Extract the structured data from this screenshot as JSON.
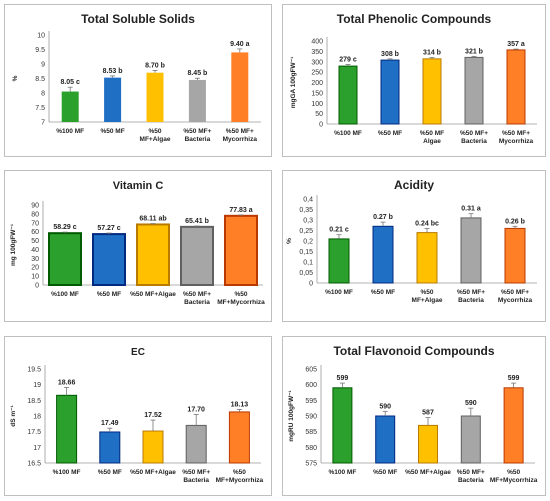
{
  "chart_data": [
    {
      "type": "bar",
      "title": "Total Soluble Solids",
      "ylabel": "%",
      "ylim": [
        7,
        10
      ],
      "yticks": [
        7,
        7.5,
        8,
        8.5,
        9,
        9.5,
        10
      ],
      "categories": [
        [
          "%100 MF"
        ],
        [
          "%50 MF"
        ],
        [
          "%50",
          "MF+Algae"
        ],
        [
          "%50 MF+",
          "Bacteria"
        ],
        [
          "%50 MF+",
          "Mycorrhiza"
        ]
      ],
      "values": [
        8.05,
        8.53,
        8.7,
        8.45,
        9.4
      ],
      "errors": [
        0.15,
        0.06,
        0.08,
        0.06,
        0.12
      ],
      "labels": [
        "8.05 c",
        "8.53 b",
        "8.70 b",
        "8.45 b",
        "9.40 a"
      ],
      "colors": [
        "#2ca02c",
        "#1f6fc5",
        "#ffc000",
        "#a6a6a6",
        "#ff7f27"
      ],
      "grid": false
    },
    {
      "type": "bar",
      "title": "Total Phenolic Compounds",
      "ylabel": "mgGA 100gFW⁻¹",
      "ylim": [
        0,
        400
      ],
      "yticks": [
        0,
        50,
        100,
        150,
        200,
        250,
        300,
        350,
        400
      ],
      "categories": [
        [
          "%100 MF"
        ],
        [
          "%50 MF"
        ],
        [
          "%50 MF",
          "Algae"
        ],
        [
          "%50 MF+",
          "Bacteria"
        ],
        [
          "%50 MF+",
          "Mycorrhiza"
        ]
      ],
      "values": [
        279,
        308,
        314,
        321,
        357
      ],
      "errors": [
        8,
        6,
        6,
        5,
        4
      ],
      "labels": [
        "279 c",
        "308 b",
        "314 b",
        "321 b",
        "357 a"
      ],
      "colors": [
        "#2ca02c",
        "#1f6fc5",
        "#ffc000",
        "#a6a6a6",
        "#ff7f27"
      ],
      "grid": false
    },
    {
      "type": "bar",
      "title": "Vitamin C",
      "ylabel": "mg 100gFW⁻¹",
      "ylim": [
        0,
        90
      ],
      "yticks": [
        0,
        10,
        20,
        30,
        40,
        50,
        60,
        70,
        80,
        90
      ],
      "categories": [
        [
          "%100 MF"
        ],
        [
          "%50 MF"
        ],
        [
          "%50 MF+Algae"
        ],
        [
          "%50 MF+",
          "Bacteria"
        ],
        [
          "%50",
          "MF+Mycorrhiza"
        ]
      ],
      "values": [
        58.29,
        57.27,
        68.11,
        65.41,
        77.83
      ],
      "errors": [
        1.2,
        1.2,
        1.0,
        1.0,
        1.0
      ],
      "labels": [
        "58.29 c",
        "57.27 c",
        "68.11 ab",
        "65.41 b",
        "77.83 a"
      ],
      "colors": [
        "#2ca02c",
        "#1f6fc5",
        "#ffc000",
        "#a6a6a6",
        "#ff7f27"
      ],
      "grid": false
    },
    {
      "type": "bar",
      "title": "Acidity",
      "ylabel": "%",
      "ylim": [
        0,
        0.4
      ],
      "yticks": [
        "0",
        "0,05",
        "0,1",
        "0,15",
        "0,2",
        "0,25",
        "0,3",
        "0,35",
        "0,4"
      ],
      "categories": [
        [
          "%100 MF"
        ],
        [
          "%50 MF"
        ],
        [
          "%50",
          "MF+Algae"
        ],
        [
          "%50 MF+",
          "Bacteria"
        ],
        [
          "%50 MF+",
          "Mycorrhiza"
        ]
      ],
      "values": [
        0.21,
        0.27,
        0.24,
        0.31,
        0.26
      ],
      "errors": [
        0.02,
        0.02,
        0.02,
        0.02,
        0.01
      ],
      "labels": [
        "0.21 c",
        "0.27 b",
        "0.24 bc",
        "0.31 a",
        "0.26 b"
      ],
      "colors": [
        "#2ca02c",
        "#1f6fc5",
        "#ffc000",
        "#a6a6a6",
        "#ff7f27"
      ],
      "grid": false
    },
    {
      "type": "bar",
      "title": "EC",
      "ylabel": "dS m⁻¹",
      "ylim": [
        16.5,
        19.5
      ],
      "yticks": [
        16.5,
        17,
        17.5,
        18,
        18.5,
        19,
        19.5
      ],
      "categories": [
        [
          "%100 MF"
        ],
        [
          "%50 MF"
        ],
        [
          "%50 MF+Algae"
        ],
        [
          "%50 MF+",
          "Bacteria"
        ],
        [
          "%50",
          "MF+Mycorrhiza"
        ]
      ],
      "values": [
        18.66,
        17.49,
        17.52,
        17.7,
        18.13
      ],
      "errors": [
        0.25,
        0.12,
        0.35,
        0.35,
        0.08
      ],
      "labels": [
        "18.66",
        "17.49",
        "17.52",
        "17.70",
        "18.13"
      ],
      "colors": [
        "#2ca02c",
        "#1f6fc5",
        "#ffc000",
        "#a6a6a6",
        "#ff7f27"
      ],
      "grid": false
    },
    {
      "type": "bar",
      "title": "Total Flavonoid Compounds",
      "ylabel": "mgRU 100gFW⁻¹",
      "ylim": [
        575,
        605
      ],
      "yticks": [
        575,
        580,
        585,
        590,
        595,
        600,
        605
      ],
      "categories": [
        [
          "%100 MF"
        ],
        [
          "%50 MF"
        ],
        [
          "%50 MF+Algae"
        ],
        [
          "%50 MF+",
          "Bacteria"
        ],
        [
          "%50",
          "MF+Mycorrhiza"
        ]
      ],
      "values": [
        599,
        590,
        587,
        590,
        599
      ],
      "errors": [
        1.5,
        1.5,
        2.5,
        2.5,
        1.5
      ],
      "labels": [
        "599",
        "590",
        "587",
        "590",
        "599"
      ],
      "colors": [
        "#2ca02c",
        "#1f6fc5",
        "#ffc000",
        "#a6a6a6",
        "#ff7f27"
      ],
      "grid": false
    }
  ]
}
